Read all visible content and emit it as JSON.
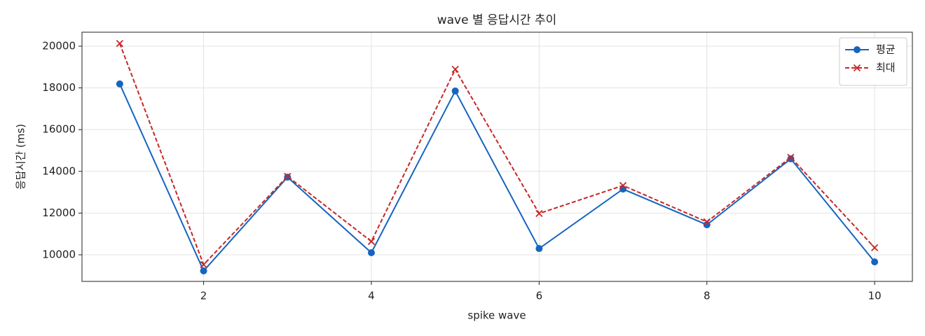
{
  "chart_data": {
    "type": "line",
    "title": "wave 별 응답시간 추이",
    "xlabel": "spike wave",
    "ylabel": "응답시간 (ms)",
    "x": [
      1,
      2,
      3,
      4,
      5,
      6,
      7,
      8,
      9,
      10
    ],
    "series": [
      {
        "name": "평균",
        "color": "#1565c0",
        "marker": "circle",
        "dash": "solid",
        "values": [
          18190,
          9230,
          13720,
          10100,
          17850,
          10300,
          13150,
          11440,
          14600,
          9660
        ]
      },
      {
        "name": "최대",
        "color": "#c62828",
        "marker": "x",
        "dash": "dashed",
        "values": [
          20130,
          9530,
          13760,
          10640,
          18890,
          11980,
          13320,
          11580,
          14670,
          10340
        ]
      }
    ],
    "xlim": [
      0.55,
      10.45
    ],
    "xticks": [
      2,
      4,
      6,
      8,
      10
    ],
    "ylim": [
      8725,
      20670
    ],
    "yticks": [
      10000,
      12000,
      14000,
      16000,
      18000,
      20000
    ],
    "grid": true,
    "legend": "upper right"
  }
}
